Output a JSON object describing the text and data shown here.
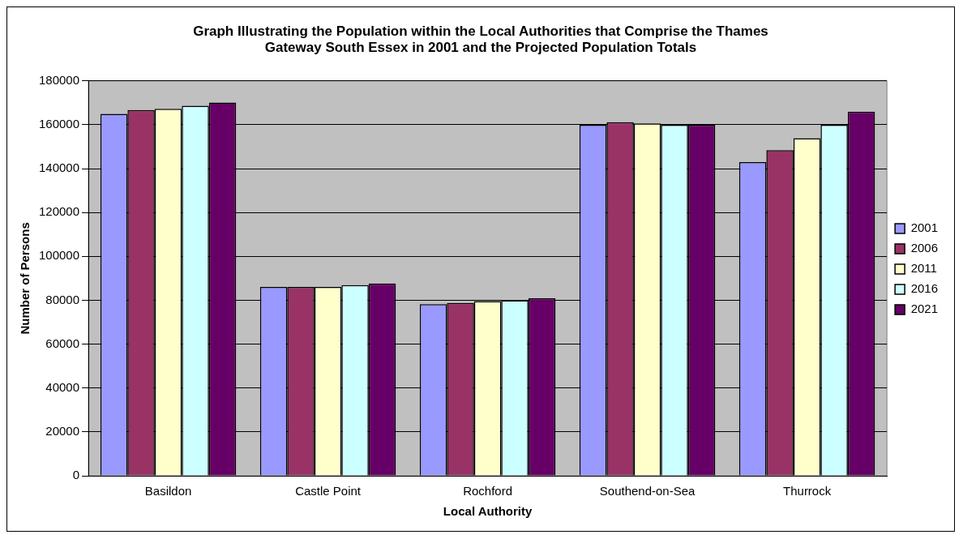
{
  "chart_data": {
    "type": "bar",
    "title": "Graph Illustrating the Population within the Local Authorities that Comprise the Thames Gateway South Essex in 2001 and the Projected Population Totals",
    "xlabel": "Local Authority",
    "ylabel": "Number of Persons",
    "categories": [
      "Basildon",
      "Castle Point",
      "Rochford",
      "Southend-on-Sea",
      "Thurrock"
    ],
    "series": [
      {
        "name": "2001",
        "color": "#9999ff",
        "values": [
          165000,
          86100,
          78200,
          160000,
          143000
        ]
      },
      {
        "name": "2006",
        "color": "#993366",
        "values": [
          166700,
          86100,
          78800,
          161200,
          148400
        ]
      },
      {
        "name": "2011",
        "color": "#ffffcc",
        "values": [
          167300,
          86100,
          79600,
          160600,
          153900
        ]
      },
      {
        "name": "2016",
        "color": "#ccffff",
        "values": [
          168700,
          86900,
          80000,
          160000,
          160000
        ]
      },
      {
        "name": "2021",
        "color": "#660066",
        "values": [
          170100,
          87700,
          80900,
          160000,
          166000
        ]
      }
    ],
    "ylim": [
      0,
      180000
    ],
    "yticks": [
      0,
      20000,
      40000,
      60000,
      80000,
      100000,
      120000,
      140000,
      160000,
      180000
    ],
    "grid": "y",
    "legend": "right"
  }
}
